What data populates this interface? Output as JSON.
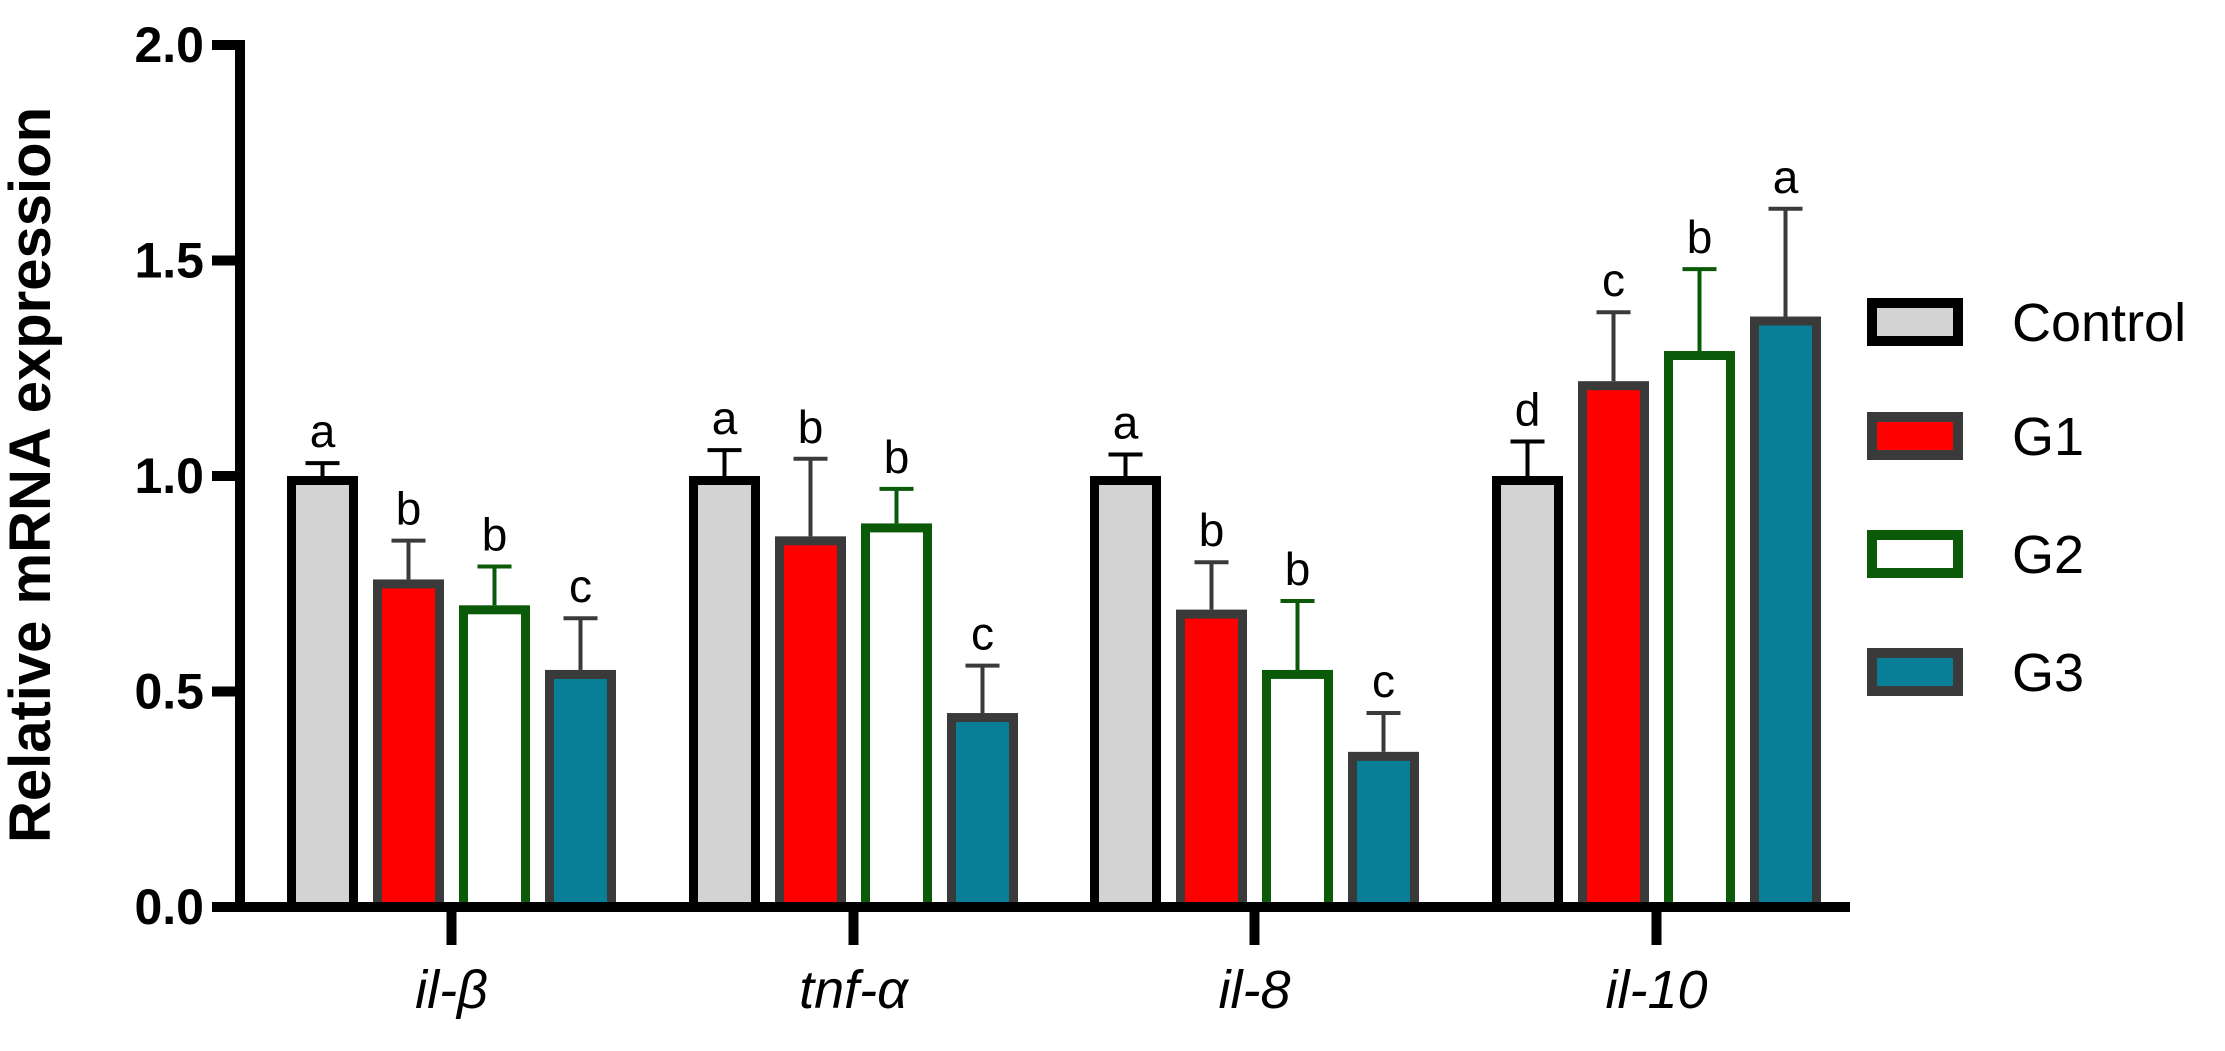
{
  "chart_data": {
    "type": "bar",
    "title": "",
    "xlabel": "",
    "ylabel": "Relative mRNA expression",
    "ylim": [
      0,
      2.0
    ],
    "yticks": [
      "0.0",
      "0.5",
      "1.0",
      "1.5",
      "2.0"
    ],
    "categories": [
      "il-β",
      "tnf-α",
      "il-8",
      "il-10"
    ],
    "legend_position": "right",
    "series": [
      {
        "name": "Control",
        "fill": "#d3d3d3",
        "stroke": "#000000",
        "error_color": "#000000",
        "values": [
          1.0,
          1.0,
          1.0,
          1.0
        ],
        "errors": [
          0.03,
          0.06,
          0.05,
          0.08
        ],
        "letters": [
          "a",
          "a",
          "a",
          "d"
        ]
      },
      {
        "name": "G1",
        "fill": "#ff0000",
        "stroke": "#3a3a3a",
        "error_color": "#3a3a3a",
        "values": [
          0.76,
          0.86,
          0.69,
          1.22
        ],
        "errors": [
          0.09,
          0.18,
          0.11,
          0.16
        ],
        "letters": [
          "b",
          "b",
          "b",
          "c"
        ]
      },
      {
        "name": "G2",
        "fill": "#ffffff",
        "stroke": "#0a5a0a",
        "error_color": "#0a5a0a",
        "values": [
          0.7,
          0.89,
          0.55,
          1.29
        ],
        "errors": [
          0.09,
          0.08,
          0.16,
          0.19
        ],
        "letters": [
          "b",
          "b",
          "b",
          "b"
        ]
      },
      {
        "name": "G3",
        "fill": "#087f96",
        "stroke": "#3a3a3a",
        "error_color": "#3a3a3a",
        "values": [
          0.55,
          0.45,
          0.36,
          1.37
        ],
        "errors": [
          0.12,
          0.11,
          0.09,
          0.25
        ],
        "letters": [
          "c",
          "c",
          "c",
          "a"
        ]
      }
    ]
  }
}
